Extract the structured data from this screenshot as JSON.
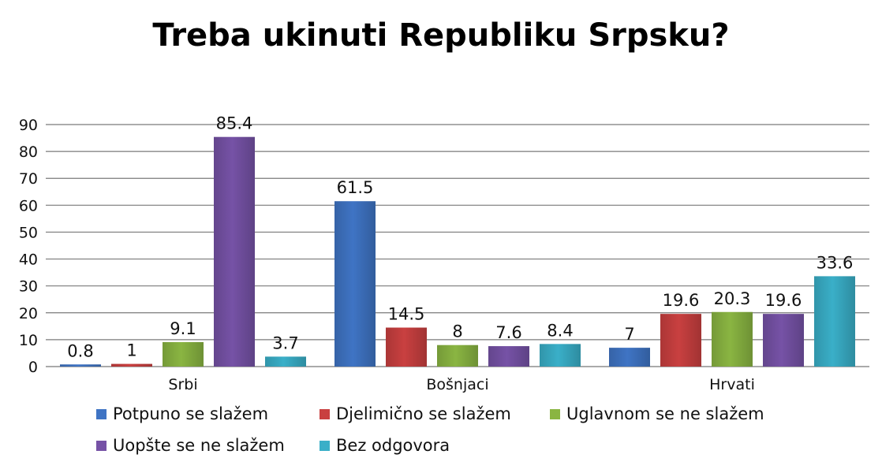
{
  "chart_data": {
    "type": "bar",
    "title": "Treba ukinuti Republiku Srpsku?",
    "categories": [
      "Srbi",
      "Bošnjaci",
      "Hrvati"
    ],
    "series": [
      {
        "name": "Potpuno se slažem",
        "color": "#3f74c4",
        "values": [
          0.8,
          61.5,
          7
        ]
      },
      {
        "name": "Djelimično se slažem",
        "color": "#c94040",
        "values": [
          1,
          14.5,
          19.6
        ]
      },
      {
        "name": "Uglavnom se ne slažem",
        "color": "#8ab542",
        "values": [
          9.1,
          8,
          20.3
        ]
      },
      {
        "name": "Uopšte se ne slažem",
        "color": "#7652a6",
        "values": [
          85.4,
          7.6,
          19.6
        ]
      },
      {
        "name": "Bez odgovora",
        "color": "#3aafc8",
        "values": [
          3.7,
          8.4,
          33.6
        ]
      }
    ],
    "data_labels": [
      [
        "0.8",
        "61.5",
        "7"
      ],
      [
        "1",
        "14.5",
        "19.6"
      ],
      [
        "9.1",
        "8",
        "20.3"
      ],
      [
        "85.4",
        "7.6",
        "19.6"
      ],
      [
        "3.7",
        "8.4",
        "33.6"
      ]
    ],
    "yticks": [
      "0",
      "10",
      "20",
      "30",
      "40",
      "50",
      "60",
      "70",
      "80",
      "90"
    ],
    "ylim": [
      0,
      90
    ],
    "grid": true,
    "legend_position": "bottom",
    "xlabel": "",
    "ylabel": ""
  }
}
